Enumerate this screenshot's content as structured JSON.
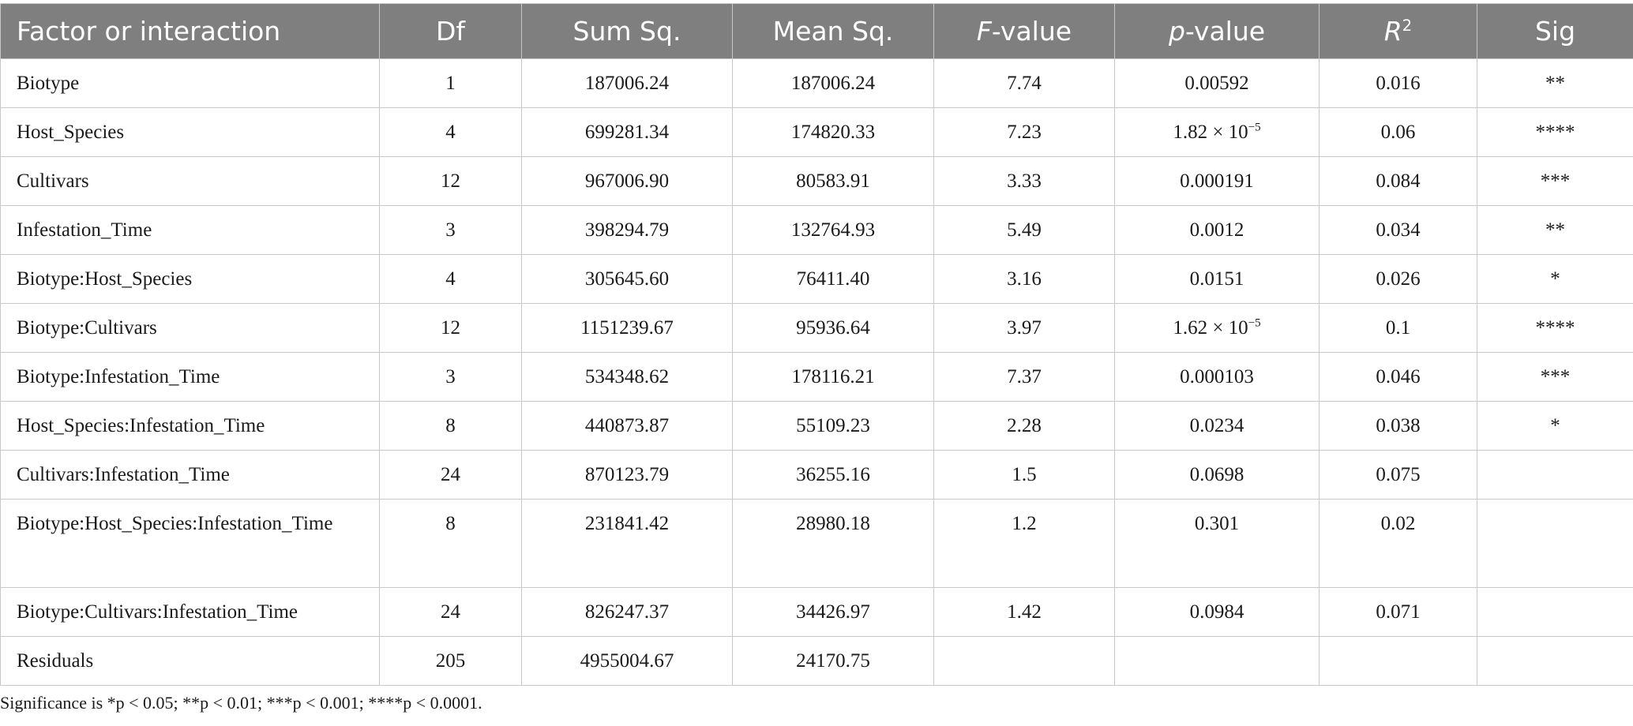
{
  "table": {
    "headers": [
      "Factor or interaction",
      "Df",
      "Sum Sq.",
      "Mean Sq.",
      {
        "italic": "F",
        "rest": "-value"
      },
      {
        "italic": "p",
        "rest": "-value"
      },
      {
        "italic": "R",
        "sup": "2"
      },
      "Sig"
    ],
    "rows": [
      [
        "Biotype",
        "1",
        "187006.24",
        "187006.24",
        "7.74",
        "0.00592",
        "0.016",
        "**"
      ],
      [
        "Host_Species",
        "4",
        "699281.34",
        "174820.33",
        "7.23",
        {
          "base": "1.82 × 10",
          "exponent": "−5"
        },
        "0.06",
        "****"
      ],
      [
        "Cultivars",
        "12",
        "967006.90",
        "80583.91",
        "3.33",
        "0.000191",
        "0.084",
        "***"
      ],
      [
        "Infestation_Time",
        "3",
        "398294.79",
        "132764.93",
        "5.49",
        "0.0012",
        "0.034",
        "**"
      ],
      [
        "Biotype:Host_Species",
        "4",
        "305645.60",
        "76411.40",
        "3.16",
        "0.0151",
        "0.026",
        "*"
      ],
      [
        "Biotype:Cultivars",
        "12",
        "1151239.67",
        "95936.64",
        "3.97",
        {
          "base": "1.62 × 10",
          "exponent": "−5"
        },
        "0.1",
        "****"
      ],
      [
        "Biotype:Infestation_Time",
        "3",
        "534348.62",
        "178116.21",
        "7.37",
        "0.000103",
        "0.046",
        "***"
      ],
      [
        "Host_Species:Infestation_Time",
        "8",
        "440873.87",
        "55109.23",
        "2.28",
        "0.0234",
        "0.038",
        "*"
      ],
      [
        "Cultivars:Infestation_Time",
        "24",
        "870123.79",
        "36255.16",
        "1.5",
        "0.0698",
        "0.075",
        null
      ],
      [
        "Biotype:Host_Species:Infestation_Time",
        "8",
        "231841.42",
        "28980.18",
        "1.2",
        "0.301",
        "0.02",
        null
      ],
      [
        "Biotype:Cultivars:Infestation_Time",
        "24",
        "826247.37",
        "34426.97",
        "1.42",
        "0.0984",
        "0.071",
        null
      ],
      [
        "Residuals",
        "205",
        "4955004.67",
        "24170.75",
        null,
        null,
        null,
        null
      ]
    ],
    "footnote": "Significance is *p < 0.05; **p < 0.01; ***p < 0.001; ****p < 0.0001."
  }
}
